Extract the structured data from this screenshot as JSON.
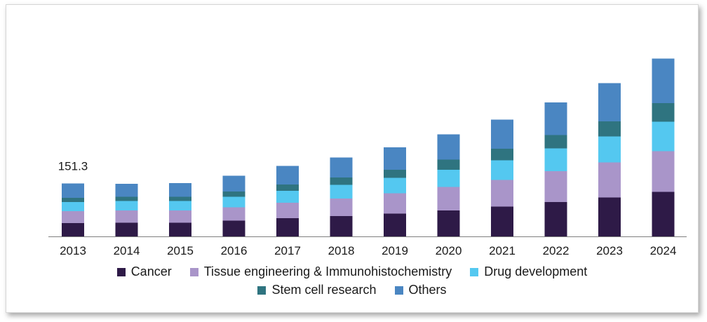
{
  "chart_data": {
    "type": "bar",
    "stacked": true,
    "categories": [
      "2013",
      "2014",
      "2015",
      "2016",
      "2017",
      "2018",
      "2019",
      "2020",
      "2021",
      "2022",
      "2023",
      "2024"
    ],
    "ylim": [
      0,
      560
    ],
    "grid": false,
    "legend_position": "bottom",
    "data_labels": [
      {
        "category": "2013",
        "text": "151.3"
      }
    ],
    "series": [
      {
        "name": "Cancer",
        "color": "#2e1a47",
        "values": [
          38,
          39,
          39,
          45,
          52,
          58,
          65,
          74,
          85,
          98,
          111,
          127
        ]
      },
      {
        "name": "Tissue engineering & Immunohistochemistry",
        "color": "#a995c9",
        "values": [
          34,
          35,
          35,
          38,
          44,
          50,
          58,
          67,
          76,
          88,
          100,
          116
        ]
      },
      {
        "name": "Drug development",
        "color": "#54c8f0",
        "values": [
          26,
          27,
          27,
          30,
          34,
          39,
          44,
          49,
          56,
          65,
          74,
          84
        ]
      },
      {
        "name": "Stem cell research",
        "color": "#2f7480",
        "values": [
          12,
          12,
          12,
          15,
          18,
          21,
          23,
          29,
          33,
          38,
          43,
          53
        ]
      },
      {
        "name": "Others",
        "color": "#4a86c2",
        "values": [
          41,
          37,
          39,
          45,
          53,
          57,
          64,
          72,
          83,
          93,
          109,
          127
        ]
      }
    ]
  }
}
